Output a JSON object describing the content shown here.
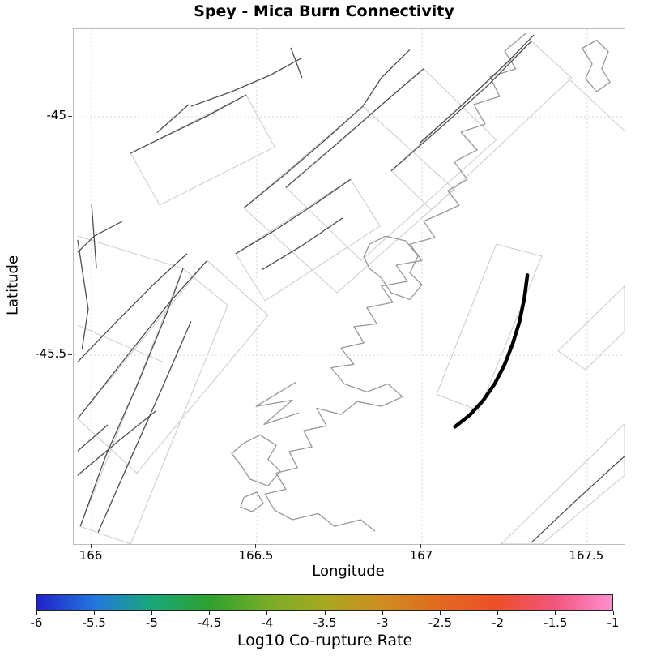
{
  "chart_data": {
    "type": "map",
    "title": "Spey - Mica Burn Connectivity",
    "xlabel": "Longitude",
    "ylabel": "Latitude",
    "xlim": [
      165.946,
      167.613
    ],
    "ylim": [
      -45.896,
      -44.816
    ],
    "xticks": [
      166,
      166.5,
      167,
      167.5
    ],
    "yticks": [
      -45,
      -45.5
    ],
    "grid": true,
    "legend": "none",
    "colorbar": {
      "label": "Log10 Co-rupture Rate",
      "orientation": "horizontal",
      "range": [
        -6,
        -1
      ],
      "ticks": [
        -6,
        -5.5,
        -5,
        -4.5,
        -4,
        -3.5,
        -3,
        -2.5,
        -2,
        -1.5,
        -1
      ],
      "colors": [
        "#2222cc",
        "#2277dd",
        "#18a878",
        "#2ea12e",
        "#76ad28",
        "#a8a820",
        "#cf8c20",
        "#e2691f",
        "#ee4f2a",
        "#f2557d",
        "#ff8fd0"
      ]
    },
    "highlighted_fault": {
      "name": "Spey - Mica Burn",
      "color": "#000000",
      "points": [
        [
          167.319,
          -45.332
        ],
        [
          167.31,
          -45.38
        ],
        [
          167.295,
          -45.43
        ],
        [
          167.275,
          -45.475
        ],
        [
          167.25,
          -45.52
        ],
        [
          167.22,
          -45.56
        ],
        [
          167.185,
          -45.595
        ],
        [
          167.145,
          -45.625
        ],
        [
          167.1,
          -45.65
        ]
      ]
    },
    "fault_traces": [
      [
        [
          165.966,
          -45.859
        ],
        [
          166.044,
          -45.709
        ],
        [
          166.142,
          -45.556
        ],
        [
          166.228,
          -45.411
        ],
        [
          166.277,
          -45.318
        ]
      ],
      [
        [
          166.02,
          -45.871
        ],
        [
          166.118,
          -45.717
        ],
        [
          166.216,
          -45.565
        ],
        [
          166.301,
          -45.429
        ]
      ],
      [
        [
          165.958,
          -45.633
        ],
        [
          166.093,
          -45.514
        ],
        [
          166.24,
          -45.386
        ],
        [
          166.35,
          -45.301
        ]
      ],
      [
        [
          165.958,
          -45.514
        ],
        [
          166.069,
          -45.434
        ],
        [
          166.191,
          -45.349
        ],
        [
          166.289,
          -45.287
        ]
      ],
      [
        [
          166.118,
          -45.076
        ],
        [
          166.228,
          -45.039
        ],
        [
          166.35,
          -44.998
        ],
        [
          166.468,
          -44.954
        ]
      ],
      [
        [
          166.301,
          -44.978
        ],
        [
          166.424,
          -44.947
        ],
        [
          166.539,
          -44.913
        ],
        [
          166.637,
          -44.876
        ]
      ],
      [
        [
          166.461,
          -45.191
        ],
        [
          166.588,
          -45.119
        ],
        [
          166.711,
          -45.046
        ],
        [
          166.821,
          -44.978
        ]
      ],
      [
        [
          166.588,
          -45.148
        ],
        [
          166.755,
          -45.049
        ],
        [
          166.907,
          -44.957
        ],
        [
          167.005,
          -44.899
        ]
      ],
      [
        [
          166.907,
          -45.113
        ],
        [
          167.054,
          -45.024
        ],
        [
          167.201,
          -44.933
        ],
        [
          167.331,
          -44.841
        ]
      ],
      [
        [
          166.993,
          -45.055
        ],
        [
          167.128,
          -44.971
        ],
        [
          167.263,
          -44.882
        ],
        [
          167.339,
          -44.828
        ]
      ],
      [
        [
          166.436,
          -45.287
        ],
        [
          166.559,
          -45.236
        ],
        [
          166.686,
          -45.178
        ],
        [
          166.784,
          -45.131
        ]
      ],
      [
        [
          166.515,
          -45.321
        ],
        [
          166.637,
          -45.27
        ],
        [
          166.76,
          -45.212
        ]
      ],
      [
        [
          165.958,
          -45.752
        ],
        [
          166.081,
          -45.68
        ],
        [
          166.196,
          -45.616
        ]
      ],
      [
        [
          165.958,
          -45.701
        ],
        [
          166.049,
          -45.646
        ]
      ],
      [
        [
          167.331,
          -45.893
        ],
        [
          167.478,
          -45.797
        ],
        [
          167.613,
          -45.712
        ]
      ],
      [
        [
          165.958,
          -45.284
        ],
        [
          166.008,
          -45.25
        ],
        [
          166.093,
          -45.219
        ]
      ],
      [
        [
          166.198,
          -45.033
        ],
        [
          166.294,
          -44.974
        ]
      ],
      [
        [
          166.603,
          -44.855
        ],
        [
          166.637,
          -44.918
        ]
      ],
      [
        [
          166.821,
          -44.978
        ],
        [
          166.877,
          -44.918
        ],
        [
          166.963,
          -44.859
        ]
      ],
      [
        [
          166.0,
          -45.182
        ],
        [
          166.015,
          -45.318
        ]
      ],
      [
        [
          165.958,
          -45.258
        ],
        [
          165.99,
          -45.403
        ],
        [
          165.971,
          -45.488
        ]
      ]
    ],
    "fault_outlines": [
      [
        [
          166.461,
          -45.191
        ],
        [
          166.821,
          -44.978
        ],
        [
          167.098,
          -45.152
        ],
        [
          166.743,
          -45.369
        ]
      ],
      [
        [
          166.588,
          -45.148
        ],
        [
          167.005,
          -44.899
        ],
        [
          167.225,
          -45.048
        ],
        [
          166.816,
          -45.301
        ]
      ],
      [
        [
          166.907,
          -45.113
        ],
        [
          167.331,
          -44.841
        ],
        [
          167.453,
          -44.918
        ],
        [
          167.029,
          -45.195
        ]
      ],
      [
        [
          165.958,
          -45.633
        ],
        [
          166.35,
          -45.301
        ],
        [
          166.534,
          -45.416
        ],
        [
          166.137,
          -45.747
        ]
      ],
      [
        [
          165.966,
          -45.859
        ],
        [
          166.277,
          -45.318
        ],
        [
          166.412,
          -45.395
        ],
        [
          166.118,
          -45.896
        ]
      ],
      [
        [
          166.118,
          -45.076
        ],
        [
          166.468,
          -44.954
        ],
        [
          166.554,
          -45.063
        ],
        [
          166.206,
          -45.185
        ]
      ],
      [
        [
          166.436,
          -45.287
        ],
        [
          166.784,
          -45.131
        ],
        [
          166.873,
          -45.229
        ],
        [
          166.525,
          -45.386
        ]
      ],
      [
        [
          167.225,
          -45.267
        ],
        [
          167.363,
          -45.292
        ],
        [
          167.172,
          -45.616
        ],
        [
          167.044,
          -45.582
        ]
      ],
      [
        [
          167.24,
          -45.896
        ],
        [
          167.613,
          -45.644
        ],
        [
          167.613,
          -45.752
        ],
        [
          167.363,
          -45.896
        ]
      ],
      [
        [
          167.412,
          -45.491
        ],
        [
          167.613,
          -45.355
        ],
        [
          167.613,
          -45.45
        ],
        [
          167.495,
          -45.53
        ]
      ],
      [
        [
          167.441,
          -44.918
        ],
        [
          167.613,
          -45.029
        ]
      ],
      [
        [
          165.958,
          -45.25
        ],
        [
          166.277,
          -45.318
        ]
      ],
      [
        [
          165.958,
          -45.437
        ],
        [
          166.216,
          -45.514
        ]
      ]
    ],
    "coastlines": [
      [
        [
          167.314,
          -44.825
        ],
        [
          167.25,
          -44.862
        ],
        [
          167.284,
          -44.899
        ],
        [
          167.206,
          -44.916
        ],
        [
          167.235,
          -44.957
        ],
        [
          167.157,
          -44.974
        ],
        [
          167.191,
          -45.015
        ],
        [
          167.118,
          -45.032
        ],
        [
          167.167,
          -45.069
        ],
        [
          167.098,
          -45.094
        ],
        [
          167.137,
          -45.131
        ],
        [
          167.078,
          -45.155
        ],
        [
          167.113,
          -45.185
        ],
        [
          167.061,
          -45.202
        ]
      ],
      [
        [
          167.485,
          -44.856
        ],
        [
          167.529,
          -44.839
        ],
        [
          167.564,
          -44.863
        ],
        [
          167.544,
          -44.899
        ],
        [
          167.569,
          -44.927
        ],
        [
          167.529,
          -44.947
        ],
        [
          167.495,
          -44.92
        ],
        [
          167.515,
          -44.889
        ],
        [
          167.485,
          -44.856
        ]
      ],
      [
        [
          167.061,
          -45.202
        ],
        [
          167.005,
          -45.219
        ],
        [
          167.039,
          -45.253
        ],
        [
          166.963,
          -45.267
        ],
        [
          167.0,
          -45.301
        ],
        [
          166.922,
          -45.311
        ],
        [
          166.956,
          -45.345
        ],
        [
          166.877,
          -45.355
        ],
        [
          166.912,
          -45.389
        ],
        [
          166.833,
          -45.4
        ],
        [
          166.863,
          -45.434
        ],
        [
          166.794,
          -45.44
        ],
        [
          166.824,
          -45.474
        ],
        [
          166.755,
          -45.485
        ],
        [
          166.794,
          -45.519
        ],
        [
          166.725,
          -45.526
        ],
        [
          166.765,
          -45.56
        ],
        [
          166.833,
          -45.577
        ],
        [
          166.897,
          -45.56
        ],
        [
          166.941,
          -45.587
        ],
        [
          166.877,
          -45.607
        ],
        [
          166.804,
          -45.597
        ],
        [
          166.755,
          -45.624
        ],
        [
          166.681,
          -45.611
        ],
        [
          166.711,
          -45.648
        ],
        [
          166.642,
          -45.658
        ],
        [
          166.667,
          -45.692
        ],
        [
          166.598,
          -45.702
        ],
        [
          166.623,
          -45.736
        ],
        [
          166.559,
          -45.747
        ],
        [
          166.588,
          -45.781
        ],
        [
          166.525,
          -45.791
        ],
        [
          166.554,
          -45.825
        ],
        [
          166.608,
          -45.845
        ],
        [
          166.686,
          -45.832
        ],
        [
          166.735,
          -45.859
        ],
        [
          166.814,
          -45.845
        ],
        [
          166.858,
          -45.869
        ]
      ],
      [
        [
          166.461,
          -45.684
        ],
        [
          166.51,
          -45.667
        ],
        [
          166.559,
          -45.689
        ],
        [
          166.534,
          -45.718
        ],
        [
          166.571,
          -45.743
        ],
        [
          166.534,
          -45.774
        ],
        [
          166.48,
          -45.76
        ],
        [
          166.451,
          -45.73
        ],
        [
          166.424,
          -45.706
        ],
        [
          166.461,
          -45.684
        ]
      ],
      [
        [
          166.461,
          -45.798
        ],
        [
          166.5,
          -45.787
        ],
        [
          166.52,
          -45.811
        ],
        [
          166.485,
          -45.828
        ],
        [
          166.451,
          -45.818
        ],
        [
          166.461,
          -45.798
        ]
      ],
      [
        [
          166.841,
          -45.267
        ],
        [
          166.89,
          -45.25
        ],
        [
          166.951,
          -45.26
        ],
        [
          166.988,
          -45.292
        ],
        [
          166.963,
          -45.327
        ],
        [
          167.0,
          -45.352
        ],
        [
          166.963,
          -45.383
        ],
        [
          166.907,
          -45.369
        ],
        [
          166.877,
          -45.338
        ],
        [
          166.841,
          -45.318
        ],
        [
          166.824,
          -45.293
        ],
        [
          166.841,
          -45.267
        ]
      ],
      [
        [
          166.62,
          -45.556
        ],
        [
          166.498,
          -45.607
        ],
        [
          166.608,
          -45.594
        ],
        [
          166.522,
          -45.645
        ],
        [
          166.627,
          -45.621
        ]
      ]
    ],
    "style": {
      "trace_color": "#4f4f4f",
      "outline_color": "#cbcbcb",
      "coast_color": "#989898",
      "grid_color": "#d9d9d9",
      "background": "#ffffff",
      "highlight_width": 4.5
    }
  }
}
